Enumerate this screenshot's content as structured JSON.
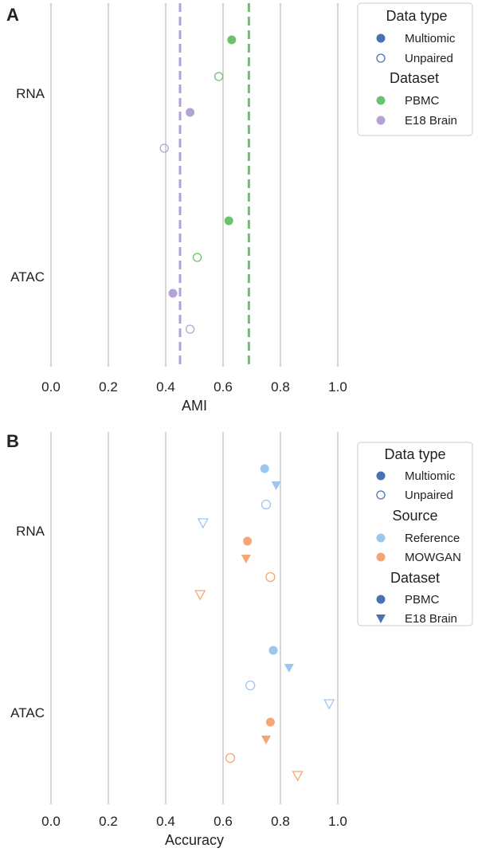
{
  "colors": {
    "pbmc": "#6cc26a",
    "e18": "#b5a2d4",
    "multiomic": "#4a72b0",
    "reference": "#9dc6ee",
    "mowgan": "#f6a576",
    "grid": "#c8c8c8",
    "axis": "#bbbbbb"
  },
  "chart_data": [
    {
      "panel": "A",
      "type": "scatter",
      "xlabel": "AMI",
      "xlim": [
        0.0,
        1.0
      ],
      "xticks": [
        "0.0",
        "0.2",
        "0.4",
        "0.6",
        "0.8",
        "1.0"
      ],
      "categories": [
        "RNA",
        "ATAC"
      ],
      "reference_lines": [
        {
          "dataset": "E18 Brain",
          "value": 0.45
        },
        {
          "dataset": "PBMC",
          "value": 0.69
        }
      ],
      "points": [
        {
          "category": "RNA",
          "row": 0,
          "data_type": "Multiomic",
          "dataset": "PBMC",
          "value": 0.63
        },
        {
          "category": "RNA",
          "row": 1,
          "data_type": "Unpaired",
          "dataset": "PBMC",
          "value": 0.585
        },
        {
          "category": "RNA",
          "row": 2,
          "data_type": "Multiomic",
          "dataset": "E18 Brain",
          "value": 0.485
        },
        {
          "category": "RNA",
          "row": 3,
          "data_type": "Unpaired",
          "dataset": "E18 Brain",
          "value": 0.395
        },
        {
          "category": "ATAC",
          "row": 0,
          "data_type": "Multiomic",
          "dataset": "PBMC",
          "value": 0.62
        },
        {
          "category": "ATAC",
          "row": 1,
          "data_type": "Unpaired",
          "dataset": "PBMC",
          "value": 0.51
        },
        {
          "category": "ATAC",
          "row": 2,
          "data_type": "Multiomic",
          "dataset": "E18 Brain",
          "value": 0.425
        },
        {
          "category": "ATAC",
          "row": 3,
          "data_type": "Unpaired",
          "dataset": "E18 Brain",
          "value": 0.485
        }
      ],
      "legend": {
        "placement": "right",
        "title1": "Data type",
        "items1": [
          "Multiomic",
          "Unpaired"
        ],
        "title2": "Dataset",
        "items2": [
          "PBMC",
          "E18 Brain"
        ]
      }
    },
    {
      "panel": "B",
      "type": "scatter",
      "xlabel": "Accuracy",
      "xlim": [
        0.0,
        1.0
      ],
      "xticks": [
        "0.0",
        "0.2",
        "0.4",
        "0.6",
        "0.8",
        "1.0"
      ],
      "categories": [
        "RNA",
        "ATAC"
      ],
      "points": [
        {
          "category": "RNA",
          "row": 0,
          "source": "Reference",
          "data_type": "Multiomic",
          "dataset": "PBMC",
          "value": 0.745
        },
        {
          "category": "RNA",
          "row": 1,
          "source": "Reference",
          "data_type": "Multiomic",
          "dataset": "E18 Brain",
          "value": 0.785
        },
        {
          "category": "RNA",
          "row": 2,
          "source": "Reference",
          "data_type": "Unpaired",
          "dataset": "PBMC",
          "value": 0.75
        },
        {
          "category": "RNA",
          "row": 3,
          "source": "Reference",
          "data_type": "Unpaired",
          "dataset": "E18 Brain",
          "value": 0.53
        },
        {
          "category": "RNA",
          "row": 4,
          "source": "MOWGAN",
          "data_type": "Multiomic",
          "dataset": "PBMC",
          "value": 0.685
        },
        {
          "category": "RNA",
          "row": 5,
          "source": "MOWGAN",
          "data_type": "Multiomic",
          "dataset": "E18 Brain",
          "value": 0.68
        },
        {
          "category": "RNA",
          "row": 6,
          "source": "MOWGAN",
          "data_type": "Unpaired",
          "dataset": "PBMC",
          "value": 0.765
        },
        {
          "category": "RNA",
          "row": 7,
          "source": "MOWGAN",
          "data_type": "Unpaired",
          "dataset": "E18 Brain",
          "value": 0.52
        },
        {
          "category": "ATAC",
          "row": 0,
          "source": "Reference",
          "data_type": "Multiomic",
          "dataset": "PBMC",
          "value": 0.775
        },
        {
          "category": "ATAC",
          "row": 1,
          "source": "Reference",
          "data_type": "Multiomic",
          "dataset": "E18 Brain",
          "value": 0.83
        },
        {
          "category": "ATAC",
          "row": 2,
          "source": "Reference",
          "data_type": "Unpaired",
          "dataset": "PBMC",
          "value": 0.695
        },
        {
          "category": "ATAC",
          "row": 3,
          "source": "Reference",
          "data_type": "Unpaired",
          "dataset": "E18 Brain",
          "value": 0.97
        },
        {
          "category": "ATAC",
          "row": 4,
          "source": "MOWGAN",
          "data_type": "Multiomic",
          "dataset": "PBMC",
          "value": 0.765
        },
        {
          "category": "ATAC",
          "row": 5,
          "source": "MOWGAN",
          "data_type": "Multiomic",
          "dataset": "E18 Brain",
          "value": 0.75
        },
        {
          "category": "ATAC",
          "row": 6,
          "source": "MOWGAN",
          "data_type": "Unpaired",
          "dataset": "PBMC",
          "value": 0.625
        },
        {
          "category": "ATAC",
          "row": 7,
          "source": "MOWGAN",
          "data_type": "Unpaired",
          "dataset": "E18 Brain",
          "value": 0.86
        }
      ],
      "legend": {
        "placement": "right",
        "title1": "Data type",
        "items1": [
          "Multiomic",
          "Unpaired"
        ],
        "title2": "Source",
        "items2": [
          "Reference",
          "MOWGAN"
        ],
        "title3": "Dataset",
        "items3": [
          "PBMC",
          "E18 Brain"
        ]
      }
    }
  ]
}
